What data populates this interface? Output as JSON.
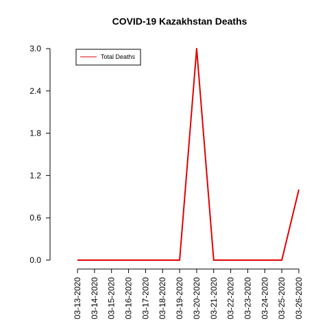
{
  "chart_data": {
    "type": "line",
    "title": "COVID-19 Kazakhstan Deaths",
    "xlabel": "",
    "ylabel": "",
    "categories": [
      "03-13-2020",
      "03-14-2020",
      "03-15-2020",
      "03-16-2020",
      "03-17-2020",
      "03-18-2020",
      "03-19-2020",
      "03-20-2020",
      "03-21-2020",
      "03-22-2020",
      "03-23-2020",
      "03-24-2020",
      "03-25-2020",
      "03-26-2020"
    ],
    "series": [
      {
        "name": "Total Deaths",
        "color": "#e00000",
        "values": [
          0,
          0,
          0,
          0,
          0,
          0,
          0,
          3,
          0,
          0,
          0,
          0,
          0,
          1
        ]
      }
    ],
    "yticks": [
      "0.0",
      "0.6",
      "1.2",
      "1.8",
      "2.4",
      "3.0"
    ],
    "ylim": [
      0,
      3
    ],
    "grid": false,
    "legend": {
      "position": "top-left",
      "label": "Total Deaths"
    }
  }
}
